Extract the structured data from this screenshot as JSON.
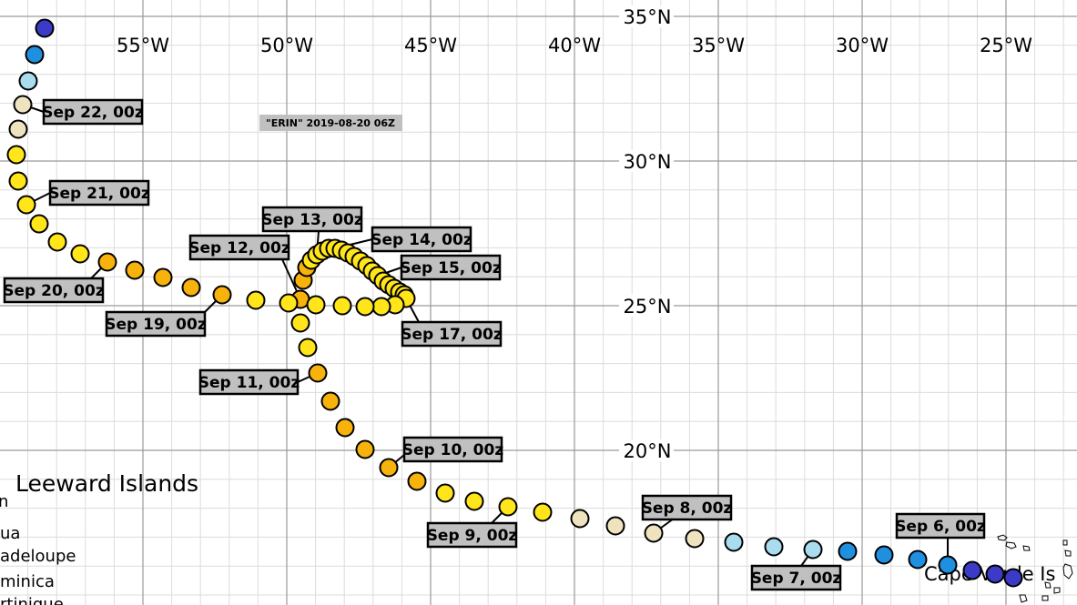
{
  "title": "\"ERIN\" 2019-08-20 06Z",
  "lon_labels": [
    "55°W",
    "50°W",
    "45°W",
    "40°W",
    "35°W",
    "30°W",
    "25°W"
  ],
  "lat_labels": [
    "35°N",
    "30°N",
    "25°N",
    "20°N"
  ],
  "places": {
    "leeward": "Leeward Islands",
    "frag1": "n",
    "frag2": "ua",
    "frag3": "adeloupe",
    "frag4": "minica",
    "frag5": "rtinique",
    "cape_verde": "Cape Verde Is"
  },
  "track_labels": [
    "Sep 6, 00z",
    "Sep 7, 00z",
    "Sep 8, 00z",
    "Sep 9, 00z",
    "Sep 10, 00z",
    "Sep 11, 00z",
    "Sep 12, 00z",
    "Sep 13, 00z",
    "Sep 14, 00z",
    "Sep 15, 00z",
    "Sep 17, 00z",
    "Sep 19, 00z",
    "Sep 20, 00z",
    "Sep 21, 00z",
    "Sep 22, 00z"
  ],
  "colors": {
    "darkblue": "#3b3bc8",
    "blue": "#1f8fe0",
    "lightblue": "#a9dcee",
    "cream": "#efe3bf",
    "yellow": "#ffe51a",
    "orange": "#f7b30c",
    "grid": "#9a9a9a",
    "grid_minor": "#dcdcdc",
    "label_bg": "#c0c0c0"
  }
}
